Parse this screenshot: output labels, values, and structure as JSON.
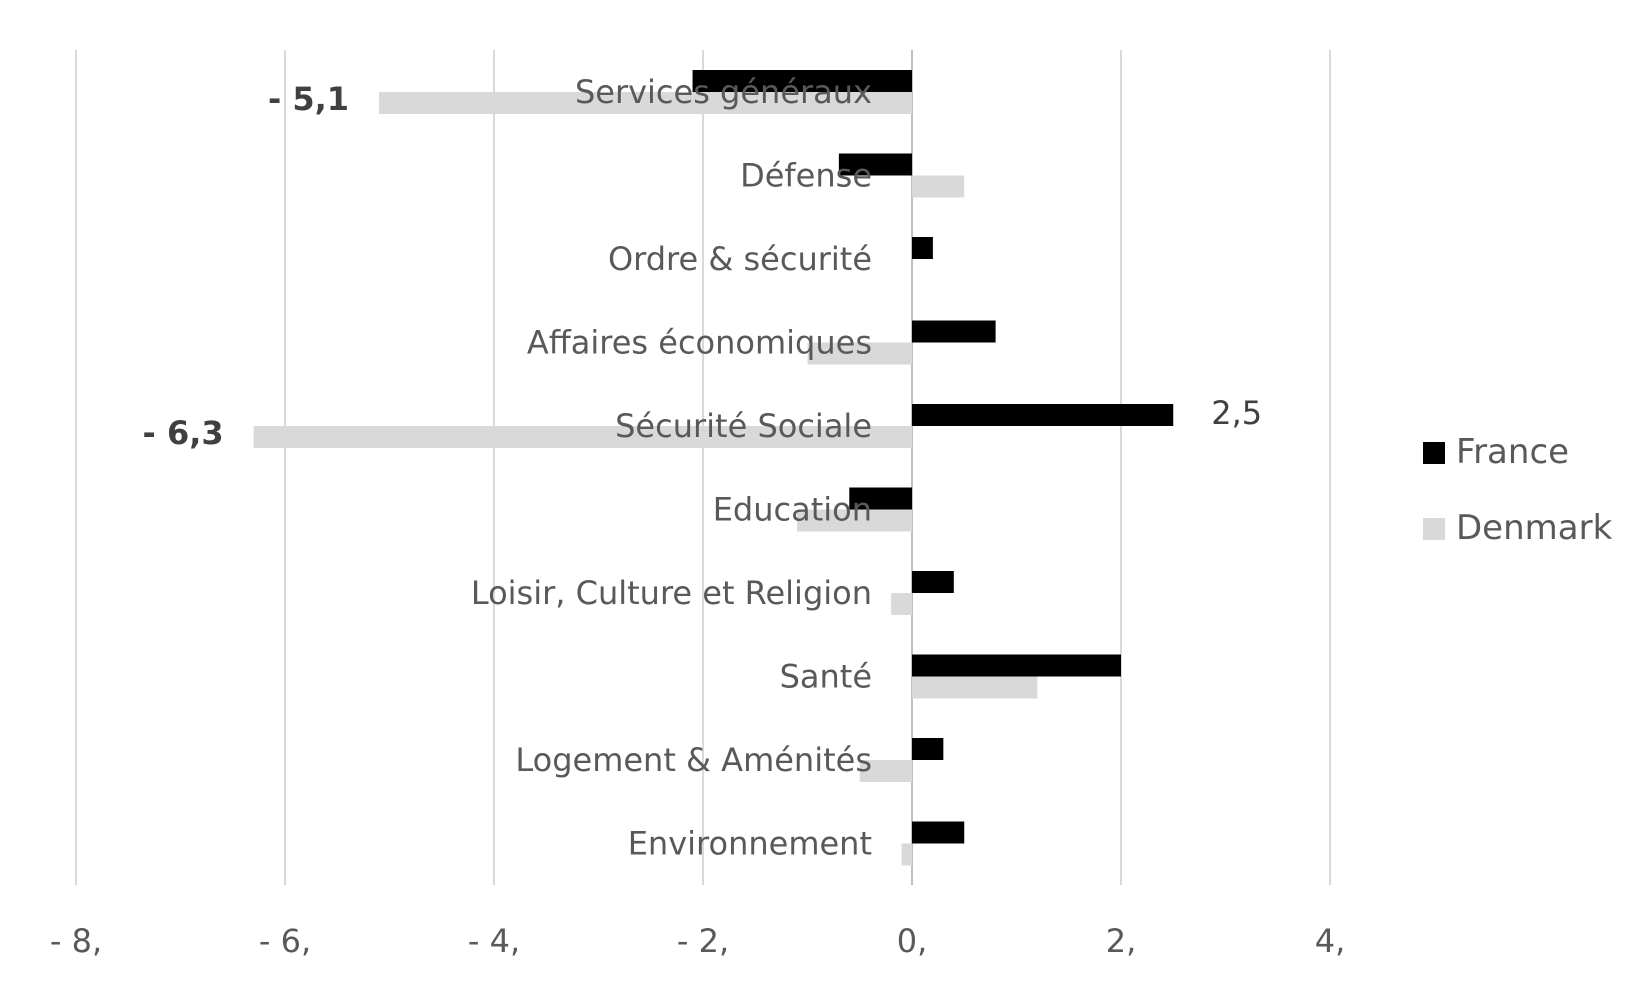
{
  "chart_data": {
    "type": "bar",
    "orientation": "horizontal",
    "categories": [
      "Services généraux",
      "Défense",
      "Ordre & sécurité",
      "Affaires économiques",
      "Sécurité Sociale",
      "Education",
      "Loisir, Culture et Religion",
      "Santé",
      "Logement & Aménités",
      "Environnement"
    ],
    "series": [
      {
        "name": "France",
        "color": "#000000",
        "values": [
          -2.1,
          -0.7,
          0.2,
          0.8,
          2.5,
          -0.6,
          0.4,
          2.0,
          0.3,
          0.5
        ]
      },
      {
        "name": "Denmark",
        "color": "#d9d9d9",
        "values": [
          -5.1,
          0.5,
          0.0,
          -1.0,
          -6.3,
          -1.1,
          -0.2,
          1.2,
          -0.5,
          -0.1
        ]
      }
    ],
    "data_labels": [
      {
        "series": "Denmark",
        "category": "Services généraux",
        "text": "- 5,1",
        "bold": true
      },
      {
        "series": "France",
        "category": "Sécurité Sociale",
        "text": "2,5",
        "bold": false
      },
      {
        "series": "Denmark",
        "category": "Sécurité Sociale",
        "text": "- 6,3",
        "bold": true
      }
    ],
    "x_ticks": [
      -8,
      -6,
      -4,
      -2,
      0,
      2,
      4
    ],
    "x_tick_labels": [
      "- 8,",
      "- 6,",
      "- 4,",
      "- 2,",
      "0,",
      "2,",
      "4,"
    ],
    "xlim": [
      -8,
      4
    ],
    "title": "",
    "xlabel": "",
    "ylabel": "",
    "grid": "vertical",
    "legend": "right"
  }
}
